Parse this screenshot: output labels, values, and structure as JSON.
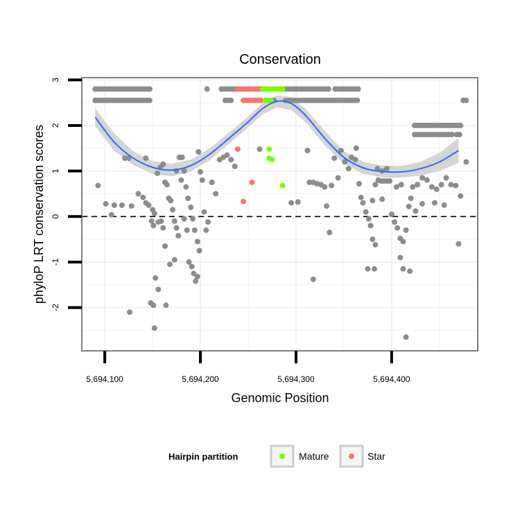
{
  "chart_data": {
    "type": "scatter",
    "title": "Conservation",
    "xlabel": "Genomic Position",
    "ylabel": "phyloP LRT conservation scores",
    "xlim": [
      5694076,
      5694490
    ],
    "ylim": [
      -2.95,
      3.05
    ],
    "x_ticks": [
      5694100,
      5694200,
      5694300,
      5694400
    ],
    "x_tick_labels": [
      "5,694,100",
      "5,694,200",
      "5,694,300",
      "5,694,400"
    ],
    "y_ticks": [
      -2,
      -1,
      0,
      1,
      2,
      3
    ],
    "y_tick_labels": [
      "-2",
      "-1",
      "0",
      "1",
      "2",
      "3"
    ],
    "reference_line": {
      "y": 0,
      "style": "dashed"
    },
    "colors": {
      "other": "#8c8c8c",
      "mature": "#7cfc00",
      "star": "#f8766d",
      "smooth": "#3366ff",
      "band": "#d5d5d5",
      "grid": "#f2f2f2",
      "frame": "#808080"
    },
    "legend": {
      "title": "Hairpin partition",
      "position": "bottom",
      "entries": [
        {
          "name": "Mature",
          "color": "#7cfc00"
        },
        {
          "name": "Star",
          "color": "#f8766d"
        }
      ]
    },
    "smooth": {
      "x": [
        5694090,
        5694110,
        5694130,
        5694150,
        5694170,
        5694190,
        5694210,
        5694230,
        5694250,
        5694265,
        5694280,
        5694295,
        5694310,
        5694330,
        5694350,
        5694370,
        5694390,
        5694410,
        5694430,
        5694450,
        5694470
      ],
      "y": [
        2.18,
        1.63,
        1.28,
        1.08,
        1.02,
        1.12,
        1.37,
        1.72,
        2.08,
        2.37,
        2.53,
        2.48,
        2.22,
        1.72,
        1.3,
        1.07,
        0.99,
        0.98,
        1.05,
        1.2,
        1.45
      ],
      "upper": [
        2.38,
        1.82,
        1.43,
        1.22,
        1.16,
        1.25,
        1.5,
        1.84,
        2.2,
        2.5,
        2.66,
        2.62,
        2.37,
        1.88,
        1.44,
        1.2,
        1.12,
        1.11,
        1.2,
        1.4,
        1.72
      ],
      "lower": [
        1.98,
        1.44,
        1.13,
        0.94,
        0.88,
        0.99,
        1.24,
        1.6,
        1.96,
        2.24,
        2.4,
        2.34,
        2.07,
        1.56,
        1.16,
        0.94,
        0.86,
        0.85,
        0.9,
        1.0,
        1.18
      ]
    },
    "points": {
      "mature": [
        [
          5694265,
          2.8
        ],
        [
          5694268,
          2.8
        ],
        [
          5694271,
          2.8
        ],
        [
          5694274,
          2.8
        ],
        [
          5694277,
          2.8
        ],
        [
          5694280,
          2.8
        ],
        [
          5694283,
          2.8
        ],
        [
          5694286,
          2.8
        ],
        [
          5694268,
          2.55
        ],
        [
          5694271,
          2.55
        ],
        [
          5694274,
          2.55
        ],
        [
          5694272,
          1.48
        ],
        [
          5694272,
          1.28
        ],
        [
          5694275,
          1.25
        ],
        [
          5694286,
          0.68
        ]
      ],
      "star": [
        [
          5694239,
          2.8
        ],
        [
          5694242,
          2.8
        ],
        [
          5694245,
          2.8
        ],
        [
          5694248,
          2.8
        ],
        [
          5694251,
          2.8
        ],
        [
          5694254,
          2.8
        ],
        [
          5694257,
          2.8
        ],
        [
          5694260,
          2.8
        ],
        [
          5694245,
          2.55
        ],
        [
          5694248,
          2.55
        ],
        [
          5694251,
          2.55
        ],
        [
          5694254,
          2.55
        ],
        [
          5694257,
          2.55
        ],
        [
          5694260,
          2.55
        ],
        [
          5694263,
          2.55
        ],
        [
          5694239,
          1.48
        ],
        [
          5694254,
          0.75
        ],
        [
          5694245,
          0.33
        ]
      ],
      "other": [
        [
          5694090,
          2.8
        ],
        [
          5694093,
          2.8
        ],
        [
          5694096,
          2.8
        ],
        [
          5694099,
          2.8
        ],
        [
          5694102,
          2.8
        ],
        [
          5694105,
          2.8
        ],
        [
          5694108,
          2.8
        ],
        [
          5694111,
          2.8
        ],
        [
          5694114,
          2.8
        ],
        [
          5694117,
          2.8
        ],
        [
          5694120,
          2.8
        ],
        [
          5694123,
          2.8
        ],
        [
          5694126,
          2.8
        ],
        [
          5694129,
          2.8
        ],
        [
          5694132,
          2.8
        ],
        [
          5694135,
          2.8
        ],
        [
          5694138,
          2.8
        ],
        [
          5694141,
          2.8
        ],
        [
          5694144,
          2.8
        ],
        [
          5694147,
          2.8
        ],
        [
          5694090,
          2.55
        ],
        [
          5694093,
          2.55
        ],
        [
          5694096,
          2.55
        ],
        [
          5694099,
          2.55
        ],
        [
          5694102,
          2.55
        ],
        [
          5694105,
          2.55
        ],
        [
          5694108,
          2.55
        ],
        [
          5694111,
          2.55
        ],
        [
          5694114,
          2.55
        ],
        [
          5694117,
          2.55
        ],
        [
          5694120,
          2.55
        ],
        [
          5694123,
          2.55
        ],
        [
          5694126,
          2.55
        ],
        [
          5694129,
          2.55
        ],
        [
          5694132,
          2.55
        ],
        [
          5694135,
          2.55
        ],
        [
          5694138,
          2.55
        ],
        [
          5694141,
          2.55
        ],
        [
          5694144,
          2.55
        ],
        [
          5694147,
          2.55
        ],
        [
          5694207,
          2.8
        ],
        [
          5694222,
          2.8
        ],
        [
          5694225,
          2.8
        ],
        [
          5694228,
          2.8
        ],
        [
          5694231,
          2.8
        ],
        [
          5694234,
          2.8
        ],
        [
          5694237,
          2.8
        ],
        [
          5694263,
          2.8
        ],
        [
          5694289,
          2.8
        ],
        [
          5694292,
          2.8
        ],
        [
          5694295,
          2.8
        ],
        [
          5694298,
          2.8
        ],
        [
          5694301,
          2.8
        ],
        [
          5694304,
          2.8
        ],
        [
          5694307,
          2.8
        ],
        [
          5694310,
          2.8
        ],
        [
          5694313,
          2.8
        ],
        [
          5694316,
          2.8
        ],
        [
          5694319,
          2.8
        ],
        [
          5694322,
          2.8
        ],
        [
          5694325,
          2.8
        ],
        [
          5694328,
          2.8
        ],
        [
          5694331,
          2.8
        ],
        [
          5694334,
          2.8
        ],
        [
          5694341,
          2.8
        ],
        [
          5694344,
          2.8
        ],
        [
          5694347,
          2.8
        ],
        [
          5694350,
          2.8
        ],
        [
          5694353,
          2.8
        ],
        [
          5694356,
          2.8
        ],
        [
          5694359,
          2.8
        ],
        [
          5694362,
          2.8
        ],
        [
          5694365,
          2.8
        ],
        [
          5694226,
          2.55
        ],
        [
          5694229,
          2.55
        ],
        [
          5694232,
          2.55
        ],
        [
          5694277,
          2.55
        ],
        [
          5694289,
          2.55
        ],
        [
          5694292,
          2.55
        ],
        [
          5694295,
          2.55
        ],
        [
          5694298,
          2.55
        ],
        [
          5694301,
          2.55
        ],
        [
          5694304,
          2.55
        ],
        [
          5694307,
          2.55
        ],
        [
          5694310,
          2.55
        ],
        [
          5694313,
          2.55
        ],
        [
          5694316,
          2.55
        ],
        [
          5694319,
          2.55
        ],
        [
          5694322,
          2.55
        ],
        [
          5694325,
          2.55
        ],
        [
          5694328,
          2.55
        ],
        [
          5694331,
          2.55
        ],
        [
          5694334,
          2.55
        ],
        [
          5694337,
          2.55
        ],
        [
          5694340,
          2.55
        ],
        [
          5694343,
          2.55
        ],
        [
          5694346,
          2.55
        ],
        [
          5694349,
          2.55
        ],
        [
          5694352,
          2.55
        ],
        [
          5694355,
          2.55
        ],
        [
          5694358,
          2.55
        ],
        [
          5694361,
          2.55
        ],
        [
          5694364,
          2.55
        ],
        [
          5694424,
          2.0
        ],
        [
          5694427,
          2.0
        ],
        [
          5694430,
          2.0
        ],
        [
          5694433,
          2.0
        ],
        [
          5694436,
          2.0
        ],
        [
          5694439,
          2.0
        ],
        [
          5694442,
          2.0
        ],
        [
          5694445,
          2.0
        ],
        [
          5694448,
          2.0
        ],
        [
          5694451,
          2.0
        ],
        [
          5694454,
          2.0
        ],
        [
          5694457,
          2.0
        ],
        [
          5694460,
          2.0
        ],
        [
          5694463,
          2.0
        ],
        [
          5694466,
          2.0
        ],
        [
          5694469,
          2.0
        ],
        [
          5694472,
          2.0
        ],
        [
          5694424,
          1.8
        ],
        [
          5694427,
          1.8
        ],
        [
          5694430,
          1.8
        ],
        [
          5694433,
          1.8
        ],
        [
          5694436,
          1.8
        ],
        [
          5694439,
          1.8
        ],
        [
          5694442,
          1.8
        ],
        [
          5694445,
          1.8
        ],
        [
          5694448,
          1.8
        ],
        [
          5694451,
          1.8
        ],
        [
          5694454,
          1.8
        ],
        [
          5694457,
          1.8
        ],
        [
          5694460,
          1.8
        ],
        [
          5694463,
          1.8
        ],
        [
          5694468,
          1.8
        ],
        [
          5694471,
          1.8
        ],
        [
          5694475,
          2.55
        ],
        [
          5694478,
          2.55
        ],
        [
          5694093,
          0.68
        ],
        [
          5694101,
          0.28
        ],
        [
          5694110,
          0.25
        ],
        [
          5694118,
          0.25
        ],
        [
          5694128,
          0.23
        ],
        [
          5694107,
          0.04
        ],
        [
          5694121,
          1.28
        ],
        [
          5694125,
          1.28
        ],
        [
          5694143,
          1.28
        ],
        [
          5694126,
          -2.1
        ],
        [
          5694135,
          0.5
        ],
        [
          5694140,
          0.42
        ],
        [
          5694143,
          0.3
        ],
        [
          5694146,
          0.25
        ],
        [
          5694150,
          0.15
        ],
        [
          5694152,
          0.07
        ],
        [
          5694149,
          -0.1
        ],
        [
          5694151,
          -0.2
        ],
        [
          5694156,
          -0.12
        ],
        [
          5694159,
          -0.1
        ],
        [
          5694161,
          -0.25
        ],
        [
          5694163,
          -0.65
        ],
        [
          5694153,
          -1.35
        ],
        [
          5694156,
          -1.6
        ],
        [
          5694148,
          -1.9
        ],
        [
          5694151,
          -1.95
        ],
        [
          5694164,
          -1.95
        ],
        [
          5694152,
          -2.45
        ],
        [
          5694155,
          0.95
        ],
        [
          5694158,
          1.08
        ],
        [
          5694161,
          1.15
        ],
        [
          5694163,
          0.75
        ],
        [
          5694165,
          0.7
        ],
        [
          5694167,
          0.4
        ],
        [
          5694169,
          0.35
        ],
        [
          5694171,
          0.15
        ],
        [
          5694173,
          -0.1
        ],
        [
          5694175,
          -0.25
        ],
        [
          5694177,
          -0.42
        ],
        [
          5694168,
          -1.05
        ],
        [
          5694173,
          -0.95
        ],
        [
          5694175,
          1.0
        ],
        [
          5694178,
          1.3
        ],
        [
          5694181,
          1.3
        ],
        [
          5694183,
          1.0
        ],
        [
          5694185,
          0.65
        ],
        [
          5694187,
          0.4
        ],
        [
          5694190,
          0.2
        ],
        [
          5694192,
          -0.05
        ],
        [
          5694194,
          -0.3
        ],
        [
          5694197,
          -0.55
        ],
        [
          5694199,
          -0.75
        ],
        [
          5694188,
          -1.0
        ],
        [
          5694191,
          -1.1
        ],
        [
          5694193,
          -1.25
        ],
        [
          5694195,
          -1.42
        ],
        [
          5694197,
          -1.32
        ],
        [
          5694198,
          1.42
        ],
        [
          5694200,
          0.98
        ],
        [
          5694202,
          0.8
        ],
        [
          5694204,
          0.1
        ],
        [
          5694206,
          -0.3
        ],
        [
          5694208,
          -0.12
        ],
        [
          5694212,
          0.75
        ],
        [
          5694216,
          0.5
        ],
        [
          5694220,
          1.25
        ],
        [
          5694224,
          1.3
        ],
        [
          5694228,
          1.35
        ],
        [
          5694232,
          1.25
        ],
        [
          5694236,
          1.1
        ],
        [
          5694180,
          0.8
        ],
        [
          5694183,
          -0.05
        ],
        [
          5694186,
          -0.3
        ],
        [
          5694262,
          1.48
        ],
        [
          5694295,
          0.3
        ],
        [
          5694302,
          0.32
        ],
        [
          5694312,
          1.45
        ],
        [
          5694318,
          0.75
        ],
        [
          5694322,
          0.72
        ],
        [
          5694326,
          0.7
        ],
        [
          5694330,
          0.65
        ],
        [
          5694332,
          0.23
        ],
        [
          5694335,
          -0.35
        ],
        [
          5694337,
          0.68
        ],
        [
          5694340,
          1.28
        ],
        [
          5694344,
          0.85
        ],
        [
          5694314,
          0.75
        ],
        [
          5694318,
          -1.38
        ],
        [
          5694347,
          1.45
        ],
        [
          5694351,
          1.2
        ],
        [
          5694355,
          1.05
        ],
        [
          5694358,
          1.3
        ],
        [
          5694362,
          1.25
        ],
        [
          5694363,
          1.5
        ],
        [
          5694366,
          0.72
        ],
        [
          5694368,
          0.42
        ],
        [
          5694370,
          0.3
        ],
        [
          5694373,
          0.1
        ],
        [
          5694376,
          -0.05
        ],
        [
          5694378,
          -0.2
        ],
        [
          5694380,
          0.35
        ],
        [
          5694383,
          0.7
        ],
        [
          5694386,
          0.8
        ],
        [
          5694389,
          0.78
        ],
        [
          5694392,
          0.78
        ],
        [
          5694395,
          0.78
        ],
        [
          5694398,
          0.78
        ],
        [
          5694380,
          -0.5
        ],
        [
          5694383,
          -0.62
        ],
        [
          5694375,
          -1.15
        ],
        [
          5694382,
          -1.15
        ],
        [
          5694385,
          1.05
        ],
        [
          5694390,
          1.0
        ],
        [
          5694395,
          1.05
        ],
        [
          5694400,
          0.05
        ],
        [
          5694403,
          -0.12
        ],
        [
          5694406,
          -0.25
        ],
        [
          5694409,
          -0.48
        ],
        [
          5694412,
          -0.55
        ],
        [
          5694415,
          -0.3
        ],
        [
          5694409,
          -0.9
        ],
        [
          5694412,
          -1.15
        ],
        [
          5694419,
          -1.2
        ],
        [
          5694415,
          -2.65
        ],
        [
          5694405,
          0.65
        ],
        [
          5694410,
          0.7
        ],
        [
          5694418,
          0.22
        ],
        [
          5694422,
          0.65
        ],
        [
          5694427,
          0.7
        ],
        [
          5694432,
          0.85
        ],
        [
          5694437,
          0.8
        ],
        [
          5694442,
          0.65
        ],
        [
          5694447,
          0.6
        ],
        [
          5694452,
          0.7
        ],
        [
          5694457,
          0.85
        ],
        [
          5694462,
          0.7
        ],
        [
          5694467,
          0.68
        ],
        [
          5694472,
          0.45
        ],
        [
          5694478,
          1.2
        ],
        [
          5694470,
          -0.6
        ],
        [
          5694455,
          0.25
        ],
        [
          5694445,
          0.3
        ],
        [
          5694432,
          0.28
        ],
        [
          5694425,
          0.12
        ],
        [
          5694390,
          0.38
        ],
        [
          5694420,
          0.4
        ]
      ]
    }
  }
}
